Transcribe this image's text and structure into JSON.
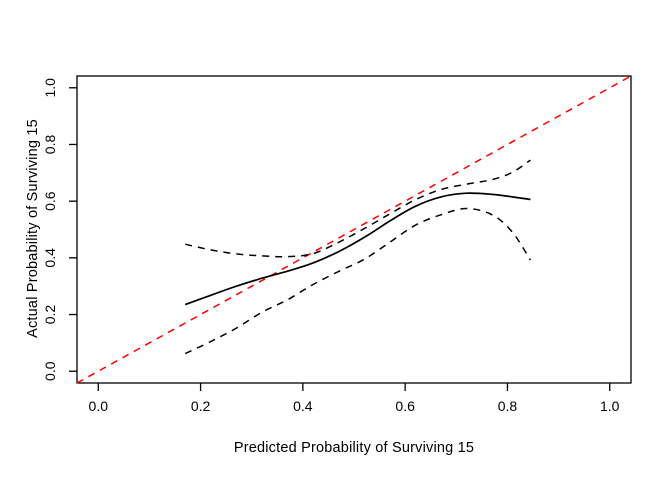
{
  "figure_title": "",
  "chart_data": {
    "type": "line",
    "title": "",
    "xlabel": "Predicted Probability of Surviving 15",
    "ylabel": "Actual Probability of Surviving 15",
    "xlim": [
      -0.0416,
      1.0416
    ],
    "ylim": [
      -0.0416,
      1.0416
    ],
    "grid": false,
    "legend": "none",
    "x_ticks": {
      "values": [
        0.0,
        0.2,
        0.4,
        0.6,
        0.8,
        1.0
      ],
      "labels": [
        "0.0",
        "0.2",
        "0.4",
        "0.6",
        "0.8",
        "1.0"
      ]
    },
    "y_ticks": {
      "values": [
        0.0,
        0.2,
        0.4,
        0.6,
        0.8,
        1.0
      ],
      "labels": [
        "0.0",
        "0.2",
        "0.4",
        "0.6",
        "0.8",
        "1.0"
      ]
    },
    "colors": {
      "ideal": "#ff0000",
      "curves": "#000000",
      "frame": "#000000"
    },
    "x": [
      0.17,
      0.22,
      0.27,
      0.32,
      0.37,
      0.42,
      0.47,
      0.52,
      0.57,
      0.62,
      0.67,
      0.72,
      0.77,
      0.81,
      0.845
    ],
    "series": [
      {
        "name": "ideal-reference-line",
        "style": "dashed",
        "color": "#ff0000",
        "note": "y = x diagonal, drawn corner to corner",
        "x": [
          -0.0416,
          1.0416
        ],
        "y": [
          -0.0416,
          1.0416
        ],
        "smooth": false
      },
      {
        "name": "calibration-curve",
        "style": "solid",
        "color": "#000000",
        "y": [
          0.235,
          0.268,
          0.3,
          0.328,
          0.353,
          0.382,
          0.422,
          0.472,
          0.53,
          0.582,
          0.615,
          0.628,
          0.624,
          0.615,
          0.606
        ],
        "smooth": true
      },
      {
        "name": "upper-confidence-band",
        "style": "dashed",
        "color": "#000000",
        "y": [
          0.448,
          0.428,
          0.414,
          0.407,
          0.404,
          0.415,
          0.455,
          0.503,
          0.555,
          0.605,
          0.641,
          0.66,
          0.676,
          0.702,
          0.745
        ],
        "smooth": true
      },
      {
        "name": "lower-confidence-band",
        "style": "dashed",
        "color": "#000000",
        "y": [
          0.062,
          0.105,
          0.152,
          0.208,
          0.252,
          0.306,
          0.352,
          0.395,
          0.455,
          0.515,
          0.552,
          0.574,
          0.552,
          0.49,
          0.392
        ],
        "smooth": true
      }
    ]
  }
}
